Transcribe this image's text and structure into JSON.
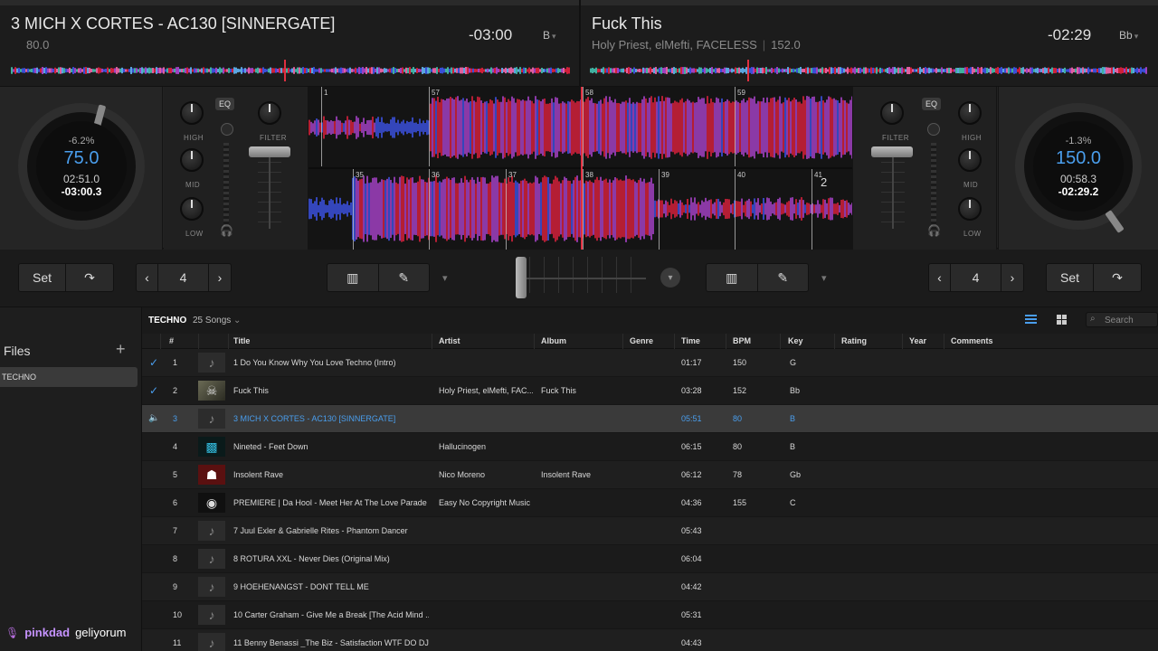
{
  "deck_a": {
    "title": "3 MICH X CORTES - AC130 [SINNERGATE]",
    "bpm_sub": "80.0",
    "remaining": "-03:00",
    "key": "B",
    "jog": {
      "pitch": "-6.2%",
      "bpm": "75.0",
      "elapsed": "02:51.0",
      "remaining": "-03:00.3"
    },
    "beatjump": "4",
    "set_label": "Set"
  },
  "deck_b": {
    "title": "Fuck This",
    "artist": "Holy Priest, elMefti, FACELESS",
    "bpm_sub": "152.0",
    "remaining": "-02:29",
    "key": "Bb",
    "jog": {
      "pitch": "-1.3%",
      "bpm": "150.0",
      "elapsed": "00:58.3",
      "remaining": "-02:29.2"
    },
    "beatjump": "4",
    "set_label": "Set"
  },
  "mixer": {
    "eq_label": "EQ",
    "high": "HIGH",
    "mid": "MID",
    "low": "LOW",
    "filter": "FILTER"
  },
  "waveform": {
    "top_beats": [
      "1",
      "57",
      "58",
      "59"
    ],
    "bottom_beats": [
      "35",
      "36",
      "37",
      "38",
      "39",
      "40",
      "41"
    ],
    "deck_b_marker": "2"
  },
  "library": {
    "crate": "TECHNO",
    "count": "25 Songs",
    "search_placeholder": "Search",
    "sidebar_title": "Files",
    "sidebar_item": "TECHNO",
    "columns": [
      "#",
      "Title",
      "Artist",
      "Album",
      "Genre",
      "Time",
      "BPM",
      "Key",
      "Rating",
      "Year",
      "Comments"
    ],
    "rows": [
      {
        "n": "1",
        "title": "1 Do You Know Why You Love Techno (Intro)",
        "artist": "",
        "album": "",
        "time": "01:17",
        "bpm": "150",
        "key": "G"
      },
      {
        "n": "2",
        "title": "Fuck This",
        "artist": "Holy Priest, elMefti, FAC...",
        "album": "Fuck This",
        "time": "03:28",
        "bpm": "152",
        "key": "Bb"
      },
      {
        "n": "3",
        "title": "3 MICH X CORTES - AC130 [SINNERGATE]",
        "artist": "",
        "album": "",
        "time": "05:51",
        "bpm": "80",
        "key": "B"
      },
      {
        "n": "4",
        "title": "Nineted - Feet Down",
        "artist": "Hallucinogen",
        "album": "",
        "time": "06:15",
        "bpm": "80",
        "key": "B"
      },
      {
        "n": "5",
        "title": "Insolent Rave",
        "artist": "Nico Moreno",
        "album": "Insolent Rave",
        "time": "06:12",
        "bpm": "78",
        "key": "Gb"
      },
      {
        "n": "6",
        "title": "PREMIERE | Da Hool - Meet Her At The Love Parade (...",
        "artist": "Easy No Copyright Music",
        "album": "",
        "time": "04:36",
        "bpm": "155",
        "key": "C"
      },
      {
        "n": "7",
        "title": "7 Juul Exler & Gabrielle Rites -  Phantom Dancer",
        "artist": "",
        "album": "",
        "time": "05:43",
        "bpm": "",
        "key": ""
      },
      {
        "n": "8",
        "title": "8 ROTURA XXL - Never Dies (Original Mix)",
        "artist": "",
        "album": "",
        "time": "06:04",
        "bpm": "",
        "key": ""
      },
      {
        "n": "9",
        "title": "9 HOEHENANGST - DONT TELL ME",
        "artist": "",
        "album": "",
        "time": "04:42",
        "bpm": "",
        "key": ""
      },
      {
        "n": "10",
        "title": "10 Carter Graham - Give Me a  Break [The Acid Mind ...",
        "artist": "",
        "album": "",
        "time": "05:31",
        "bpm": "",
        "key": ""
      },
      {
        "n": "11",
        "title": "11 Benny Benassi _The Biz - Satisfaction WTF DO DJs ...",
        "artist": "",
        "album": "",
        "time": "04:43",
        "bpm": "",
        "key": ""
      }
    ]
  },
  "stream": {
    "user": "pinkdad",
    "message": "geliyorum"
  },
  "colors": {
    "accent": "#4a9eed",
    "wave_red": "#d0203a",
    "wave_blue": "#3a4fd8",
    "wave_purple": "#a040c0"
  }
}
